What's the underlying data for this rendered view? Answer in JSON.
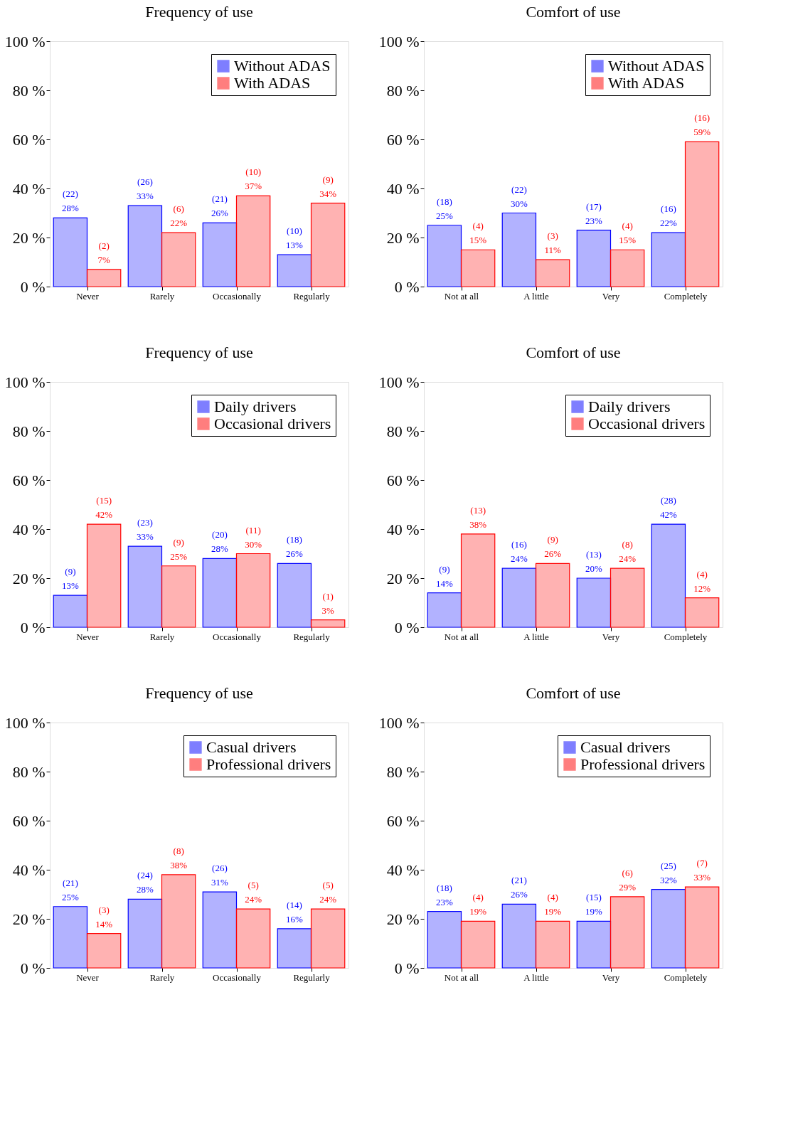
{
  "chart_data": [
    {
      "type": "bar",
      "title": "Frequency of use",
      "categories": [
        "Never",
        "Rarely",
        "Occasionally",
        "Regularly"
      ],
      "ylim": [
        0,
        100
      ],
      "yticks": [
        {
          "value": 0,
          "label": "0 %"
        },
        {
          "value": 20,
          "label": "20 %"
        },
        {
          "value": 40,
          "label": "40 %"
        },
        {
          "value": 60,
          "label": "60 %"
        },
        {
          "value": 80,
          "label": "80 %"
        },
        {
          "value": 100,
          "label": "100 %"
        }
      ],
      "grid": false,
      "legend": "top right",
      "series": [
        {
          "name": "Without ADAS",
          "color": "#0000ff",
          "values": [
            28,
            33,
            26,
            13
          ],
          "value_labels": [
            "(22)\n28%",
            "(26)\n33%",
            "(21)\n26%",
            "(10)\n13%"
          ]
        },
        {
          "name": "With ADAS",
          "color": "#ff0000",
          "values": [
            7,
            22,
            37,
            34
          ],
          "value_labels": [
            "(2)\n7%",
            "(6)\n22%",
            "(10)\n37%",
            "(9)\n34%"
          ]
        }
      ]
    },
    {
      "type": "bar",
      "title": "Comfort of use",
      "categories": [
        "Not at all",
        "A little",
        "Very",
        "Completely"
      ],
      "ylim": [
        0,
        100
      ],
      "yticks": [
        {
          "value": 0,
          "label": "0 %"
        },
        {
          "value": 20,
          "label": "20 %"
        },
        {
          "value": 40,
          "label": "40 %"
        },
        {
          "value": 60,
          "label": "60 %"
        },
        {
          "value": 80,
          "label": "80 %"
        },
        {
          "value": 100,
          "label": "100 %"
        }
      ],
      "grid": false,
      "legend": "top right",
      "series": [
        {
          "name": "Without ADAS",
          "color": "#0000ff",
          "values": [
            25,
            30,
            23,
            22
          ],
          "value_labels": [
            "(18)\n25%",
            "(22)\n30%",
            "(17)\n23%",
            "(16)\n22%"
          ]
        },
        {
          "name": "With ADAS",
          "color": "#ff0000",
          "values": [
            15,
            11,
            15,
            59
          ],
          "value_labels": [
            "(4)\n15%",
            "(3)\n11%",
            "(4)\n15%",
            "(16)\n59%"
          ]
        }
      ]
    },
    {
      "type": "bar",
      "title": "Frequency of use",
      "categories": [
        "Never",
        "Rarely",
        "Occasionally",
        "Regularly"
      ],
      "ylim": [
        0,
        100
      ],
      "yticks": [
        {
          "value": 0,
          "label": "0 %"
        },
        {
          "value": 20,
          "label": "20 %"
        },
        {
          "value": 40,
          "label": "40 %"
        },
        {
          "value": 60,
          "label": "60 %"
        },
        {
          "value": 80,
          "label": "80 %"
        },
        {
          "value": 100,
          "label": "100 %"
        }
      ],
      "grid": false,
      "legend": "top right",
      "series": [
        {
          "name": "Daily drivers",
          "color": "#0000ff",
          "values": [
            13,
            33,
            28,
            26
          ],
          "value_labels": [
            "(9)\n13%",
            "(23)\n33%",
            "(20)\n28%",
            "(18)\n26%"
          ]
        },
        {
          "name": "Occasional drivers",
          "color": "#ff0000",
          "values": [
            42,
            25,
            30,
            3
          ],
          "value_labels": [
            "(15)\n42%",
            "(9)\n25%",
            "(11)\n30%",
            "(1)\n3%"
          ]
        }
      ]
    },
    {
      "type": "bar",
      "title": "Comfort of use",
      "categories": [
        "Not at all",
        "A little",
        "Very",
        "Completely"
      ],
      "ylim": [
        0,
        100
      ],
      "yticks": [
        {
          "value": 0,
          "label": "0 %"
        },
        {
          "value": 20,
          "label": "20 %"
        },
        {
          "value": 40,
          "label": "40 %"
        },
        {
          "value": 60,
          "label": "60 %"
        },
        {
          "value": 80,
          "label": "80 %"
        },
        {
          "value": 100,
          "label": "100 %"
        }
      ],
      "grid": false,
      "legend": "top right",
      "series": [
        {
          "name": "Daily drivers",
          "color": "#0000ff",
          "values": [
            14,
            24,
            20,
            42
          ],
          "value_labels": [
            "(9)\n14%",
            "(16)\n24%",
            "(13)\n20%",
            "(28)\n42%"
          ]
        },
        {
          "name": "Occasional drivers",
          "color": "#ff0000",
          "values": [
            38,
            26,
            24,
            12
          ],
          "value_labels": [
            "(13)\n38%",
            "(9)\n26%",
            "(8)\n24%",
            "(4)\n12%"
          ]
        }
      ]
    },
    {
      "type": "bar",
      "title": "Frequency of use",
      "categories": [
        "Never",
        "Rarely",
        "Occasionally",
        "Regularly"
      ],
      "ylim": [
        0,
        100
      ],
      "yticks": [
        {
          "value": 0,
          "label": "0 %"
        },
        {
          "value": 20,
          "label": "20 %"
        },
        {
          "value": 40,
          "label": "40 %"
        },
        {
          "value": 60,
          "label": "60 %"
        },
        {
          "value": 80,
          "label": "80 %"
        },
        {
          "value": 100,
          "label": "100 %"
        }
      ],
      "grid": false,
      "legend": "top right",
      "series": [
        {
          "name": "Casual drivers",
          "color": "#0000ff",
          "values": [
            25,
            28,
            31,
            16
          ],
          "value_labels": [
            "(21)\n25%",
            "(24)\n28%",
            "(26)\n31%",
            "(14)\n16%"
          ]
        },
        {
          "name": "Professional drivers",
          "color": "#ff0000",
          "values": [
            14,
            38,
            24,
            24
          ],
          "value_labels": [
            "(3)\n14%",
            "(8)\n38%",
            "(5)\n24%",
            "(5)\n24%"
          ]
        }
      ]
    },
    {
      "type": "bar",
      "title": "Comfort of use",
      "categories": [
        "Not at all",
        "A little",
        "Very",
        "Completely"
      ],
      "ylim": [
        0,
        100
      ],
      "yticks": [
        {
          "value": 0,
          "label": "0 %"
        },
        {
          "value": 20,
          "label": "20 %"
        },
        {
          "value": 40,
          "label": "40 %"
        },
        {
          "value": 60,
          "label": "60 %"
        },
        {
          "value": 80,
          "label": "80 %"
        },
        {
          "value": 100,
          "label": "100 %"
        }
      ],
      "grid": false,
      "legend": "top right",
      "series": [
        {
          "name": "Casual drivers",
          "color": "#0000ff",
          "values": [
            23,
            26,
            19,
            32
          ],
          "value_labels": [
            "(18)\n23%",
            "(21)\n26%",
            "(15)\n19%",
            "(25)\n32%"
          ]
        },
        {
          "name": "Professional drivers",
          "color": "#ff0000",
          "values": [
            19,
            19,
            29,
            33
          ],
          "value_labels": [
            "(4)\n19%",
            "(4)\n19%",
            "(6)\n29%",
            "(7)\n33%"
          ]
        }
      ]
    }
  ]
}
